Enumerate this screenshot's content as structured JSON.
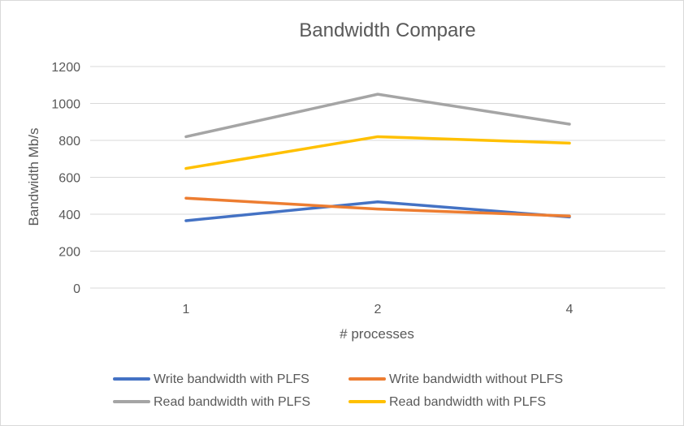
{
  "chart_data": {
    "type": "line",
    "title": "Bandwidth Compare",
    "xlabel": "# processes",
    "ylabel": "Bandwidth Mb/s",
    "categories": [
      "1",
      "2",
      "4"
    ],
    "ylim": [
      0,
      1200
    ],
    "yticks": [
      0,
      200,
      400,
      600,
      800,
      1000,
      1200
    ],
    "grid": true,
    "legend_position": "bottom",
    "series": [
      {
        "name": "Write bandwidth with PLFS",
        "color": "#4472c4",
        "values": [
          365,
          467,
          385
        ]
      },
      {
        "name": "Write bandwidth without PLFS",
        "color": "#ed7d31",
        "values": [
          487,
          428,
          390
        ]
      },
      {
        "name": "Read bandwidth with PLFS",
        "color": "#a5a5a5",
        "values": [
          820,
          1050,
          888
        ]
      },
      {
        "name": "Read bandwidth with PLFS",
        "color": "#ffc000",
        "values": [
          648,
          820,
          785
        ]
      }
    ]
  }
}
